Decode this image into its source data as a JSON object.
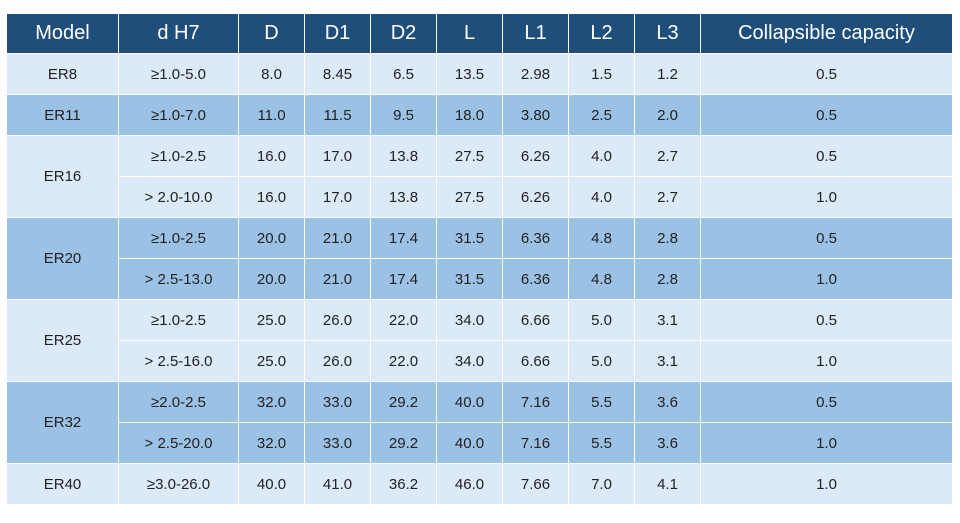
{
  "columns": [
    "Model",
    "d H7",
    "D",
    "D1",
    "D2",
    "L",
    "L1",
    "L2",
    "L3",
    "Collapsible capacity"
  ],
  "groups": [
    {
      "model": "ER8",
      "rows": [
        [
          "≥1.0-5.0",
          "8.0",
          "8.45",
          "6.5",
          "13.5",
          "2.98",
          "1.5",
          "1.2",
          "0.5"
        ]
      ]
    },
    {
      "model": "ER11",
      "rows": [
        [
          "≥1.0-7.0",
          "11.0",
          "11.5",
          "9.5",
          "18.0",
          "3.80",
          "2.5",
          "2.0",
          "0.5"
        ]
      ]
    },
    {
      "model": "ER16",
      "rows": [
        [
          "≥1.0-2.5",
          "16.0",
          "17.0",
          "13.8",
          "27.5",
          "6.26",
          "4.0",
          "2.7",
          "0.5"
        ],
        [
          "> 2.0-10.0",
          "16.0",
          "17.0",
          "13.8",
          "27.5",
          "6.26",
          "4.0",
          "2.7",
          "1.0"
        ]
      ]
    },
    {
      "model": "ER20",
      "rows": [
        [
          "≥1.0-2.5",
          "20.0",
          "21.0",
          "17.4",
          "31.5",
          "6.36",
          "4.8",
          "2.8",
          "0.5"
        ],
        [
          "> 2.5-13.0",
          "20.0",
          "21.0",
          "17.4",
          "31.5",
          "6.36",
          "4.8",
          "2.8",
          "1.0"
        ]
      ]
    },
    {
      "model": "ER25",
      "rows": [
        [
          "≥1.0-2.5",
          "25.0",
          "26.0",
          "22.0",
          "34.0",
          "6.66",
          "5.0",
          "3.1",
          "0.5"
        ],
        [
          "> 2.5-16.0",
          "25.0",
          "26.0",
          "22.0",
          "34.0",
          "6.66",
          "5.0",
          "3.1",
          "1.0"
        ]
      ]
    },
    {
      "model": "ER32",
      "rows": [
        [
          "≥2.0-2.5",
          "32.0",
          "33.0",
          "29.2",
          "40.0",
          "7.16",
          "5.5",
          "3.6",
          "0.5"
        ],
        [
          "> 2.5-20.0",
          "32.0",
          "33.0",
          "29.2",
          "40.0",
          "7.16",
          "5.5",
          "3.6",
          "1.0"
        ]
      ]
    },
    {
      "model": "ER40",
      "rows": [
        [
          "≥3.0-26.0",
          "40.0",
          "41.0",
          "36.2",
          "46.0",
          "7.66",
          "7.0",
          "4.1",
          "1.0"
        ]
      ]
    }
  ],
  "colors": {
    "header_bg": "#1f4e7a",
    "row_light": "#dce9f6",
    "row_dark": "#9bc1e4",
    "header_text": "#ffffff"
  }
}
